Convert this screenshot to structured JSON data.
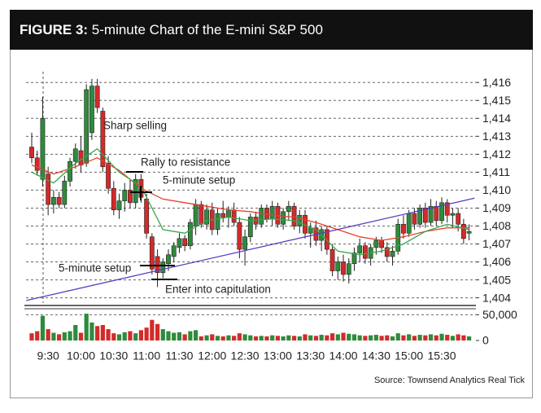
{
  "chart_data": {
    "type": "candlestick",
    "title_label": "FIGURE 3:",
    "title": "5-minute Chart of the E-mini S&P 500",
    "source": "Source: Townsend Analytics Real Tick",
    "annotations": [
      "Sharp selling",
      "Rally to resistance",
      "5-minute setup",
      "5-minute setup",
      "Enter into capitulation"
    ],
    "categories": [
      null,
      null,
      null,
      "9:30",
      null,
      null,
      null,
      null,
      null,
      "10:00",
      null,
      null,
      null,
      null,
      null,
      "10:30",
      null,
      null,
      null,
      null,
      null,
      "11:00",
      null,
      null,
      null,
      null,
      null,
      "11:30",
      null,
      null,
      null,
      null,
      null,
      "12:00",
      null,
      null,
      null,
      null,
      null,
      "12:30",
      null,
      null,
      null,
      null,
      null,
      "13:00",
      null,
      null,
      null,
      null,
      null,
      "13:30",
      null,
      null,
      null,
      null,
      null,
      "14:00",
      null,
      null,
      null,
      null,
      null,
      "14:30",
      null,
      null,
      null,
      null,
      null,
      "15:00",
      null,
      null,
      null,
      null,
      null,
      "15:30",
      null,
      null,
      null,
      null,
      null
    ],
    "ohlc": [
      [
        1412.4,
        1413.2,
        1411.5,
        1411.8
      ],
      [
        1411.8,
        1412.2,
        1410.8,
        1411.1
      ],
      [
        1410.6,
        1415.2,
        1410.2,
        1414.0
      ],
      [
        1410.9,
        1411.3,
        1408.6,
        1409.2
      ],
      [
        1409.2,
        1410.0,
        1408.7,
        1409.6
      ],
      [
        1409.6,
        1409.9,
        1409.0,
        1409.2
      ],
      [
        1409.2,
        1410.8,
        1409.0,
        1410.5
      ],
      [
        1410.5,
        1411.8,
        1410.2,
        1411.6
      ],
      [
        1411.6,
        1412.6,
        1411.2,
        1412.3
      ],
      [
        1412.2,
        1413.0,
        1411.0,
        1411.4
      ],
      [
        1411.5,
        1415.9,
        1411.3,
        1415.6
      ],
      [
        1413.2,
        1416.2,
        1412.8,
        1415.8
      ],
      [
        1415.8,
        1416.2,
        1414.3,
        1414.6
      ],
      [
        1414.4,
        1414.6,
        1411.0,
        1411.3
      ],
      [
        1411.5,
        1411.9,
        1409.8,
        1410.1
      ],
      [
        1410.1,
        1410.5,
        1408.6,
        1408.9
      ],
      [
        1408.9,
        1409.8,
        1408.4,
        1409.4
      ],
      [
        1409.4,
        1410.4,
        1408.8,
        1410.0
      ],
      [
        1410.0,
        1410.6,
        1409.0,
        1409.3
      ],
      [
        1409.3,
        1410.9,
        1409.0,
        1410.6
      ],
      [
        1410.6,
        1410.9,
        1409.3,
        1409.6
      ],
      [
        1409.5,
        1409.8,
        1407.3,
        1407.6
      ],
      [
        1407.4,
        1407.6,
        1405.3,
        1405.6
      ],
      [
        1406.3,
        1406.7,
        1404.6,
        1405.4
      ],
      [
        1405.4,
        1406.2,
        1405.1,
        1406.0
      ],
      [
        1405.9,
        1406.7,
        1405.5,
        1406.4
      ],
      [
        1406.3,
        1407.1,
        1406.0,
        1406.9
      ],
      [
        1406.8,
        1407.6,
        1406.5,
        1407.3
      ],
      [
        1407.3,
        1407.5,
        1406.6,
        1406.9
      ],
      [
        1406.9,
        1408.4,
        1406.7,
        1408.2
      ],
      [
        1408.0,
        1409.5,
        1407.5,
        1409.2
      ],
      [
        1409.2,
        1409.4,
        1407.9,
        1408.1
      ],
      [
        1408.1,
        1409.2,
        1407.8,
        1408.9
      ],
      [
        1408.9,
        1409.3,
        1407.5,
        1407.8
      ],
      [
        1407.8,
        1409.0,
        1407.5,
        1408.7
      ],
      [
        1408.7,
        1409.4,
        1408.2,
        1408.5
      ],
      [
        1408.5,
        1409.1,
        1407.9,
        1408.9
      ],
      [
        1408.9,
        1409.3,
        1408.0,
        1408.2
      ],
      [
        1408.2,
        1408.5,
        1406.2,
        1406.7
      ],
      [
        1406.7,
        1407.8,
        1405.8,
        1407.4
      ],
      [
        1407.4,
        1408.7,
        1407.1,
        1408.5
      ],
      [
        1408.5,
        1408.8,
        1407.8,
        1408.1
      ],
      [
        1408.1,
        1409.2,
        1407.9,
        1409.0
      ],
      [
        1409.0,
        1409.2,
        1408.2,
        1408.4
      ],
      [
        1408.4,
        1409.4,
        1408.0,
        1409.1
      ],
      [
        1409.1,
        1409.3,
        1407.9,
        1408.1
      ],
      [
        1408.1,
        1409.0,
        1407.8,
        1408.8
      ],
      [
        1408.8,
        1409.4,
        1408.3,
        1409.1
      ],
      [
        1409.1,
        1409.3,
        1407.8,
        1408.0
      ],
      [
        1408.0,
        1408.9,
        1407.6,
        1408.6
      ],
      [
        1408.6,
        1408.9,
        1407.3,
        1407.6
      ],
      [
        1407.6,
        1408.2,
        1406.8,
        1407.9
      ],
      [
        1407.9,
        1408.3,
        1406.9,
        1407.2
      ],
      [
        1407.2,
        1408.0,
        1406.6,
        1407.8
      ],
      [
        1407.8,
        1408.0,
        1406.4,
        1406.7
      ],
      [
        1406.7,
        1407.0,
        1405.2,
        1405.5
      ],
      [
        1405.5,
        1406.3,
        1405.0,
        1406.0
      ],
      [
        1406.0,
        1406.4,
        1404.9,
        1405.3
      ],
      [
        1405.3,
        1406.2,
        1404.8,
        1405.9
      ],
      [
        1405.9,
        1406.8,
        1405.5,
        1406.5
      ],
      [
        1406.5,
        1407.3,
        1406.0,
        1406.9
      ],
      [
        1406.9,
        1407.1,
        1405.9,
        1406.2
      ],
      [
        1406.2,
        1407.0,
        1405.8,
        1406.8
      ],
      [
        1406.8,
        1407.4,
        1406.4,
        1407.2
      ],
      [
        1407.2,
        1407.4,
        1406.5,
        1406.8
      ],
      [
        1406.8,
        1407.1,
        1406.0,
        1406.3
      ],
      [
        1406.3,
        1406.9,
        1405.8,
        1406.6
      ],
      [
        1406.6,
        1408.4,
        1406.4,
        1408.1
      ],
      [
        1408.1,
        1408.6,
        1407.3,
        1407.6
      ],
      [
        1407.6,
        1408.9,
        1407.4,
        1408.7
      ],
      [
        1408.7,
        1409.0,
        1407.8,
        1408.1
      ],
      [
        1408.1,
        1409.2,
        1407.9,
        1409.0
      ],
      [
        1409.0,
        1409.3,
        1407.9,
        1408.2
      ],
      [
        1408.2,
        1409.5,
        1408.0,
        1409.1
      ],
      [
        1409.1,
        1409.4,
        1408.0,
        1408.3
      ],
      [
        1408.3,
        1409.6,
        1408.1,
        1409.3
      ],
      [
        1409.3,
        1409.5,
        1408.2,
        1408.6
      ],
      [
        1408.6,
        1409.0,
        1407.9,
        1408.7
      ],
      [
        1408.7,
        1409.0,
        1407.7,
        1408.1
      ],
      [
        1408.1,
        1408.4,
        1407.0,
        1407.3
      ],
      [
        1407.6,
        1408.1,
        1407.2,
        1407.7
      ]
    ],
    "volume": [
      14000,
      18000,
      48000,
      22000,
      15000,
      12000,
      16000,
      18000,
      30000,
      15000,
      52000,
      35000,
      28000,
      30000,
      22000,
      14000,
      12000,
      16000,
      18000,
      14000,
      20000,
      25000,
      40000,
      32000,
      22000,
      18000,
      15000,
      16000,
      12000,
      18000,
      20000,
      8000,
      10000,
      12000,
      9000,
      8000,
      10000,
      9000,
      14000,
      12000,
      10000,
      8000,
      9000,
      8000,
      10000,
      9000,
      8000,
      10000,
      9000,
      8000,
      12000,
      10000,
      9000,
      11000,
      10000,
      14000,
      12000,
      15000,
      13000,
      12000,
      10000,
      9000,
      10000,
      11000,
      9000,
      10000,
      8000,
      14000,
      10000,
      12000,
      9000,
      11000,
      10000,
      12000,
      10000,
      13000,
      11000,
      9000,
      12000,
      10000,
      8000
    ],
    "up_color": "#2e8b3c",
    "down_color": "#d42a2a",
    "lines": [
      {
        "color": "#e8402a",
        "x": [
          0,
          4,
          8,
          12,
          16,
          20,
          24,
          28,
          32,
          36,
          40,
          44,
          48,
          52,
          56,
          60,
          64,
          68,
          72,
          76,
          80
        ],
        "values": [
          1411.4,
          1410.9,
          1411.3,
          1411.8,
          1411.1,
          1410.1,
          1409.5,
          1409.3,
          1409.1,
          1408.9,
          1408.8,
          1408.6,
          1408.5,
          1408.2,
          1407.8,
          1407.4,
          1407.2,
          1407.4,
          1407.7,
          1407.9,
          1407.9
        ]
      },
      {
        "color": "#3aa54a",
        "x": [
          0,
          4,
          8,
          12,
          16,
          20,
          24,
          28,
          32,
          36,
          40,
          44,
          48,
          52,
          56,
          60,
          64,
          68,
          72,
          76,
          80
        ],
        "values": [
          1411.0,
          1410.4,
          1411.5,
          1412.3,
          1411.0,
          1410.2,
          1407.8,
          1407.6,
          1408.3,
          1408.5,
          1408.3,
          1408.4,
          1408.3,
          1407.8,
          1406.6,
          1406.4,
          1406.6,
          1407.0,
          1407.7,
          1408.1,
          1407.8
        ]
      },
      {
        "color": "#5a3fc0",
        "x": [
          -1,
          81
        ],
        "values": [
          1403.85,
          1409.55
        ]
      }
    ],
    "ylim": [
      1403.8,
      1416.6
    ],
    "yticks": [
      {
        "value": 1404,
        "label": "1,404"
      },
      {
        "value": 1405,
        "label": "1,405"
      },
      {
        "value": 1406,
        "label": "1,406"
      },
      {
        "value": 1407,
        "label": "1,407"
      },
      {
        "value": 1408,
        "label": "1,408"
      },
      {
        "value": 1409,
        "label": "1,409"
      },
      {
        "value": 1410,
        "label": "1,410"
      },
      {
        "value": 1411,
        "label": "1,411"
      },
      {
        "value": 1412,
        "label": "1,412"
      },
      {
        "value": 1413,
        "label": "1,413"
      },
      {
        "value": 1414,
        "label": "1,414"
      },
      {
        "value": 1415,
        "label": "1,415"
      },
      {
        "value": 1416,
        "label": "1,416"
      }
    ],
    "vlim": [
      0,
      60000
    ],
    "vticks": [
      {
        "value": 50000,
        "label": "50,000"
      },
      0
    ],
    "grid": true
  }
}
